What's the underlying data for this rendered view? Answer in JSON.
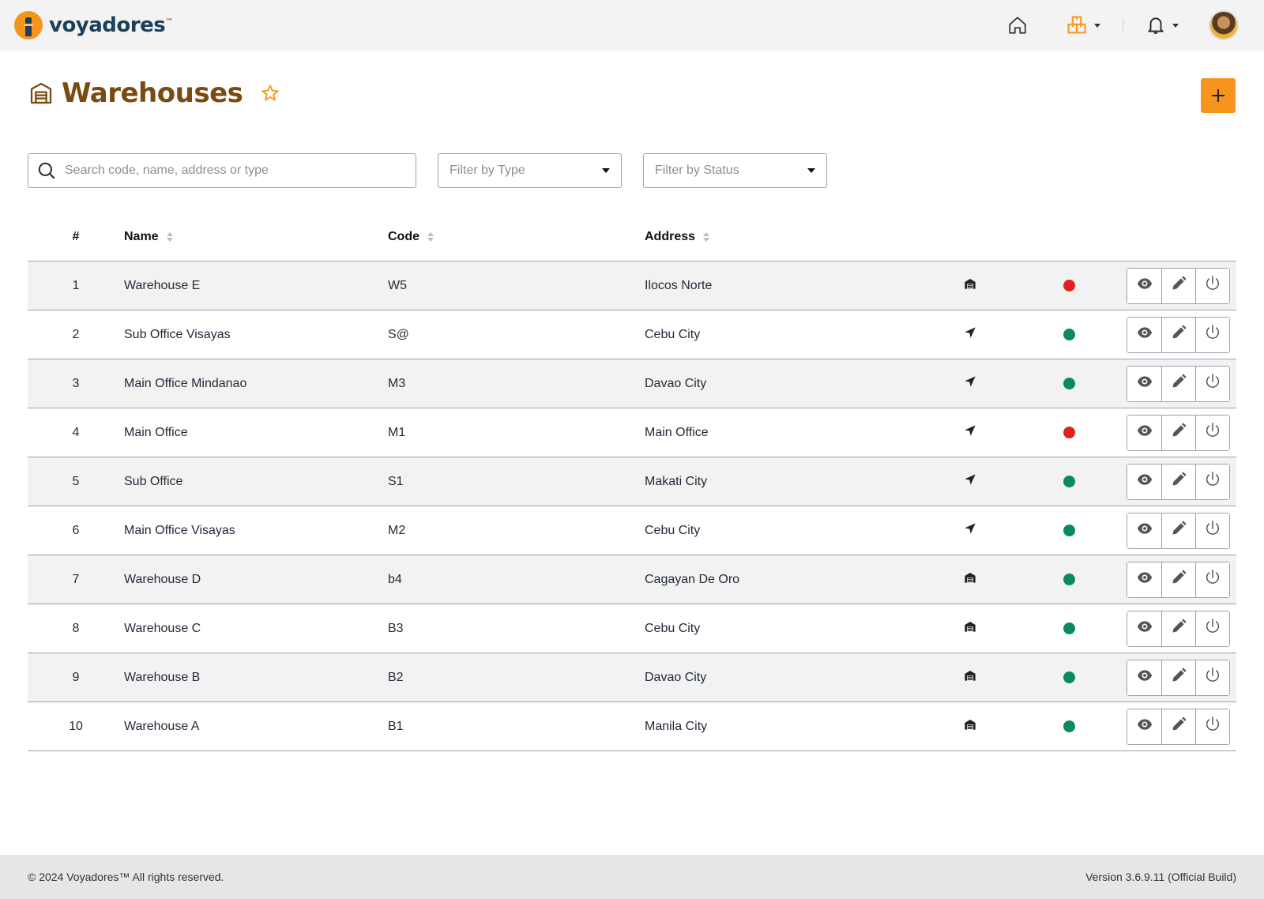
{
  "brand": {
    "name": "voyadores",
    "tm": "™"
  },
  "topbar": {
    "home_icon": "home-icon",
    "warehouse_icon": "boxes-icon",
    "bell_icon": "bell-icon",
    "accent": "#f7941d"
  },
  "page": {
    "title": "Warehouses",
    "title_color": "#7a4a10"
  },
  "filters": {
    "search_placeholder": "Search code, name, address or type",
    "type_placeholder": "Filter by Type",
    "status_placeholder": "Filter by Status"
  },
  "table": {
    "headers": {
      "num": "#",
      "name": "Name",
      "code": "Code",
      "address": "Address"
    },
    "rows": [
      {
        "num": "1",
        "name": "Warehouse E",
        "code": "W5",
        "address": "Ilocos Norte",
        "type_icon": "warehouse-icon",
        "status": "inactive"
      },
      {
        "num": "2",
        "name": "Sub Office Visayas",
        "code": "S@",
        "address": "Cebu City",
        "type_icon": "location-arrow-icon",
        "status": "active"
      },
      {
        "num": "3",
        "name": "Main Office Mindanao",
        "code": "M3",
        "address": "Davao City",
        "type_icon": "location-arrow-icon",
        "status": "active"
      },
      {
        "num": "4",
        "name": "Main Office",
        "code": "M1",
        "address": "Main Office",
        "type_icon": "location-arrow-icon",
        "status": "inactive"
      },
      {
        "num": "5",
        "name": "Sub Office",
        "code": "S1",
        "address": "Makati City",
        "type_icon": "location-arrow-icon",
        "status": "active"
      },
      {
        "num": "6",
        "name": "Main Office Visayas",
        "code": "M2",
        "address": "Cebu City",
        "type_icon": "location-arrow-icon",
        "status": "active"
      },
      {
        "num": "7",
        "name": "Warehouse D",
        "code": "b4",
        "address": "Cagayan De Oro",
        "type_icon": "warehouse-icon",
        "status": "active"
      },
      {
        "num": "8",
        "name": "Warehouse C",
        "code": "B3",
        "address": "Cebu City",
        "type_icon": "warehouse-icon",
        "status": "active"
      },
      {
        "num": "9",
        "name": "Warehouse B",
        "code": "B2",
        "address": "Davao City",
        "type_icon": "warehouse-icon",
        "status": "active"
      },
      {
        "num": "10",
        "name": "Warehouse A",
        "code": "B1",
        "address": "Manila City",
        "type_icon": "warehouse-icon",
        "status": "active"
      }
    ],
    "status_colors": {
      "active": "#0b8a5a",
      "inactive": "#e0221c"
    }
  },
  "footer": {
    "copyright": "© 2024 Voyadores™ All rights reserved.",
    "version": "Version 3.6.9.11 (Official Build)"
  }
}
